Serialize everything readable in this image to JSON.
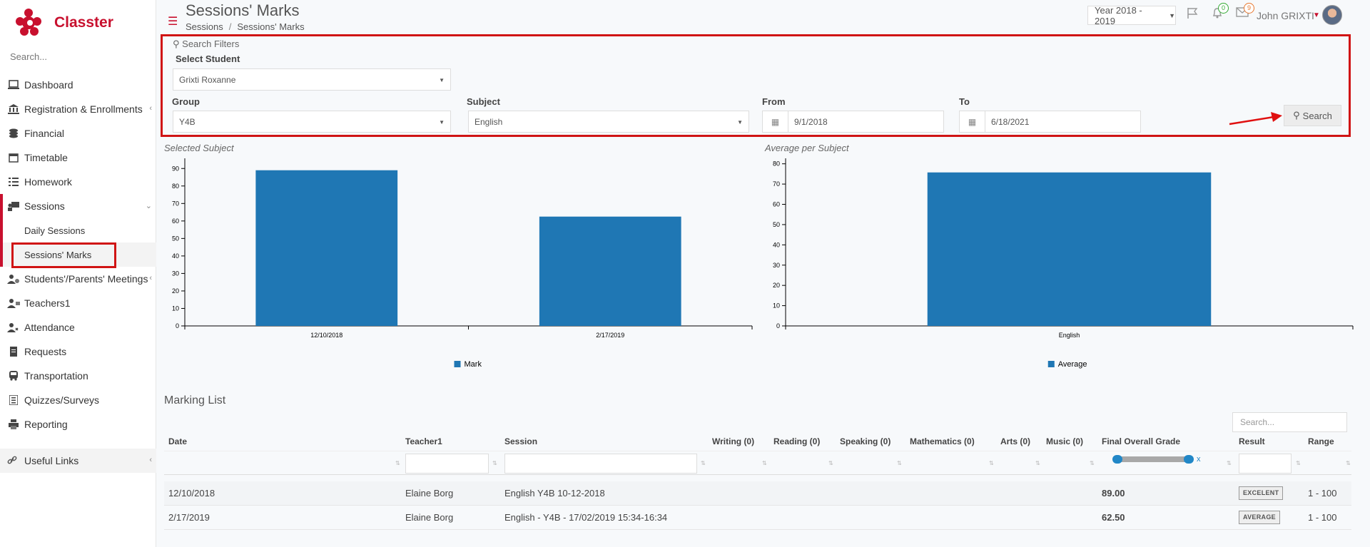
{
  "brand": {
    "name": "Classter"
  },
  "sidebar": {
    "search_placeholder": "Search...",
    "items": [
      {
        "label": "Dashboard",
        "icon": "laptop-icon"
      },
      {
        "label": "Registration & Enrollments",
        "icon": "institution-icon",
        "has_chevron": true
      },
      {
        "label": "Financial",
        "icon": "coins-icon"
      },
      {
        "label": "Timetable",
        "icon": "calendar-icon"
      },
      {
        "label": "Homework",
        "icon": "tasks-icon"
      },
      {
        "label": "Sessions",
        "icon": "sessions-icon",
        "has_chevron": true,
        "open": true
      }
    ],
    "sub_items": [
      {
        "label": "Daily Sessions"
      },
      {
        "label": "Sessions' Marks",
        "active": true
      }
    ],
    "items_after": [
      {
        "label": "Students'/Parents' Meetings",
        "icon": "meeting-icon",
        "has_chevron": true
      },
      {
        "label": "Teachers1",
        "icon": "teachers-icon"
      },
      {
        "label": "Attendance",
        "icon": "attendance-icon"
      },
      {
        "label": "Requests",
        "icon": "document-icon"
      },
      {
        "label": "Transportation",
        "icon": "bus-icon"
      },
      {
        "label": "Quizzes/Surveys",
        "icon": "list-icon"
      },
      {
        "label": "Reporting",
        "icon": "printer-icon"
      }
    ],
    "useful_links": "Useful Links"
  },
  "header": {
    "title": "Sessions' Marks",
    "breadcrumb": [
      "Sessions",
      "Sessions' Marks"
    ],
    "year": "Year 2018 - 2019",
    "notifications_count": "0",
    "messages_count": "9",
    "username": "John GRIXTI"
  },
  "filters": {
    "title": "Search Filters",
    "student_label": "Select Student",
    "student_value": "Grixti Roxanne",
    "group_label": "Group",
    "group_value": "Y4B",
    "subject_label": "Subject",
    "subject_value": "English",
    "from_label": "From",
    "from_value": "9/1/2018",
    "to_label": "To",
    "to_value": "6/18/2021",
    "search_button": "Search"
  },
  "chart_data": [
    {
      "type": "bar",
      "title": "Selected Subject",
      "categories": [
        "12/10/2018",
        "2/17/2019"
      ],
      "series": [
        {
          "name": "Mark",
          "values": [
            89,
            62.5
          ]
        }
      ],
      "ylim": [
        0,
        95
      ],
      "yticks": [
        0,
        10,
        20,
        30,
        40,
        50,
        60,
        70,
        80,
        90
      ],
      "color": "#1f77b4",
      "legend": "bottom"
    },
    {
      "type": "bar",
      "title": "Average per Subject",
      "categories": [
        "English"
      ],
      "series": [
        {
          "name": "Average",
          "values": [
            75.75
          ]
        }
      ],
      "ylim": [
        0,
        82
      ],
      "yticks": [
        0,
        10,
        20,
        30,
        40,
        50,
        60,
        70,
        80
      ],
      "color": "#1f77b4",
      "legend": "bottom"
    }
  ],
  "marking_list": {
    "title": "Marking List",
    "search_placeholder": "Search...",
    "columns": [
      "Date",
      "Teacher1",
      "Session",
      "Writing (0)",
      "Reading (0)",
      "Speaking (0)",
      "Mathematics (0)",
      "Arts (0)",
      "Music (0)",
      "Final Overall Grade",
      "Result",
      "Range"
    ],
    "slider_clear": "x",
    "rows": [
      {
        "date": "12/10/2018",
        "teacher": "Elaine Borg",
        "session": "English Y4B 10-12-2018",
        "grade": "89.00",
        "result": "EXCELENT",
        "range": "1 - 100"
      },
      {
        "date": "2/17/2019",
        "teacher": "Elaine Borg",
        "session": "English - Y4B - 17/02/2019 15:34-16:34",
        "grade": "62.50",
        "result": "AVERAGE",
        "range": "1 - 100"
      }
    ]
  }
}
